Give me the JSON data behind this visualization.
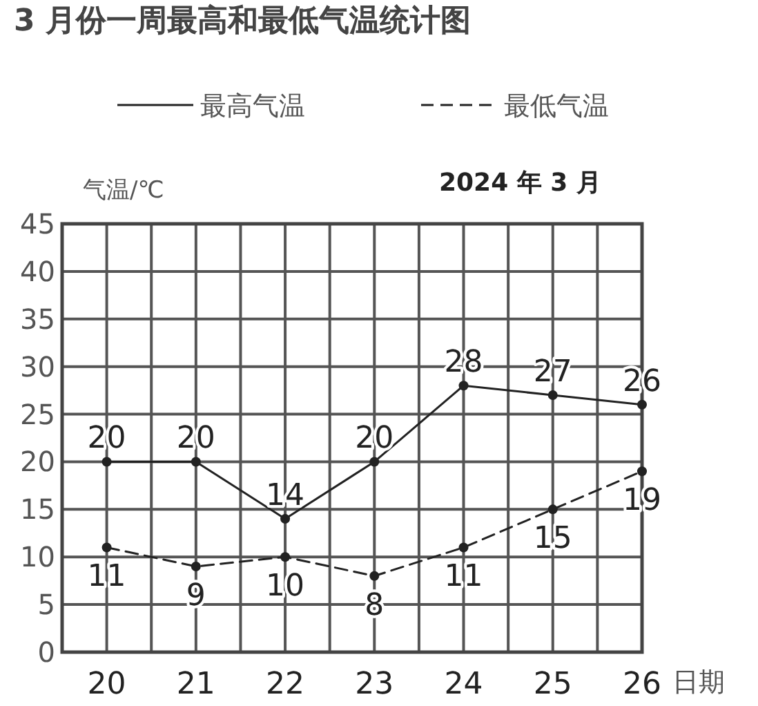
{
  "chart_data": {
    "type": "line",
    "title": "3 月份一周最高和最低气温统计图",
    "xlabel": "日期",
    "ylabel": "气温/℃",
    "annotations": [
      "2024 年 3 月"
    ],
    "categories": [
      "20",
      "21",
      "22",
      "23",
      "24",
      "25",
      "26"
    ],
    "series": [
      {
        "name": "最高气温",
        "color": "#222222",
        "line_style": "solid",
        "values": [
          20,
          20,
          14,
          20,
          28,
          27,
          26
        ]
      },
      {
        "name": "最低气温",
        "color": "#222222",
        "line_style": "dashed",
        "values": [
          11,
          9,
          10,
          8,
          11,
          15,
          19
        ]
      }
    ],
    "ylim": [
      0,
      45
    ],
    "yticks": [
      0,
      5,
      10,
      15,
      20,
      25,
      30,
      35,
      40,
      45
    ],
    "grid": true,
    "legend": "top",
    "marker": "circle",
    "data_labels": true
  }
}
